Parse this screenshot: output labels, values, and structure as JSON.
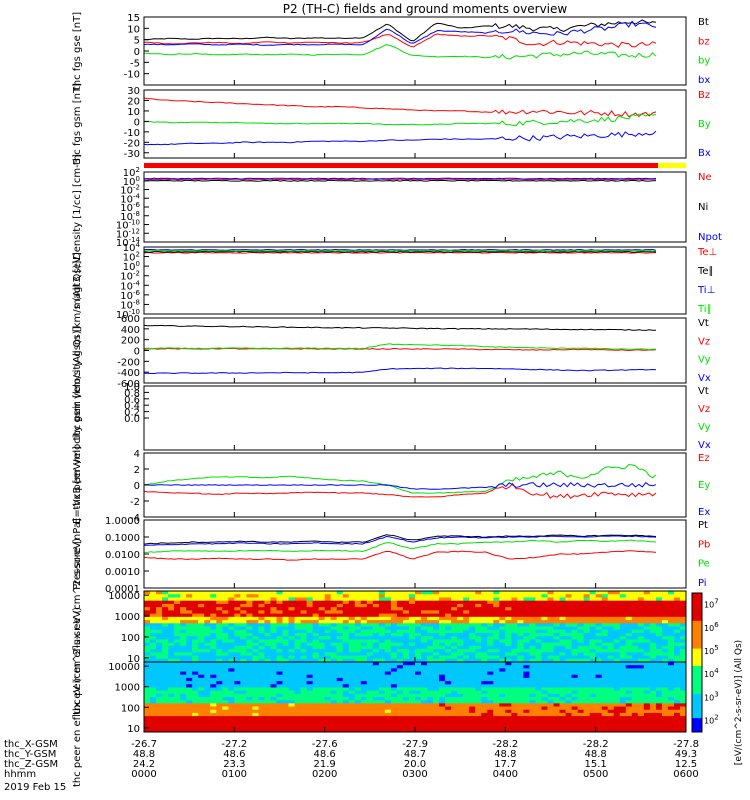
{
  "title": "P2 (TH-C) fields and ground moments overview",
  "colors": {
    "black": "#000000",
    "red": "#ff0000",
    "green": "#00e000",
    "blue": "#0000ff",
    "yellow": "#ffff00"
  },
  "chart_data": [
    {
      "id": "fgs_gse",
      "type": "line",
      "ylabel": "thc fgs gse [nT]",
      "ylim": [
        -15,
        15
      ],
      "yticks": [
        "15",
        "10",
        "5",
        "0",
        "-5",
        "-10"
      ],
      "yticks_values": [
        15,
        10,
        5,
        0,
        -5,
        -10
      ],
      "series": [
        {
          "name": "Bt",
          "color": "black",
          "values": [
            5,
            5.5,
            5.2,
            5.6,
            5.4,
            6,
            5.5,
            5.8,
            5.6,
            5.9,
            12,
            4,
            12.5,
            10,
            11,
            11,
            10,
            9.5,
            11,
            12,
            13,
            12
          ]
        },
        {
          "name": "bz",
          "color": "red",
          "values": [
            4,
            3.2,
            3.5,
            3.8,
            3.2,
            4,
            3.6,
            3.9,
            3.5,
            3.8,
            7.5,
            1.5,
            7.5,
            6.5,
            6.8,
            5.5,
            3,
            4,
            3.5,
            3,
            2.5,
            3
          ]
        },
        {
          "name": "by",
          "color": "green",
          "values": [
            -1,
            -1.5,
            -1.2,
            -1.8,
            -1.4,
            -1.6,
            -1.5,
            -1.7,
            -1.4,
            -1.6,
            3,
            -2,
            -2.5,
            -2.3,
            -2.8,
            -2.6,
            -2,
            -1.5,
            -1,
            -1.5,
            -2,
            -1.5
          ]
        },
        {
          "name": "bx",
          "color": "blue",
          "values": [
            3,
            2.8,
            3.1,
            2.7,
            3,
            2.6,
            2.9,
            2.8,
            3,
            2.7,
            10,
            3,
            9,
            8.5,
            8,
            9,
            8,
            7.5,
            9,
            10,
            12,
            11
          ]
        }
      ]
    },
    {
      "id": "fgs_gsm",
      "type": "line",
      "ylabel": "thc fgs gsm [nT]",
      "ylim": [
        -35,
        30
      ],
      "yticks": [
        "30",
        "20",
        "10",
        "0",
        "-10",
        "-20",
        "-30"
      ],
      "yticks_values": [
        30,
        20,
        10,
        0,
        -10,
        -20,
        -30
      ],
      "series": [
        {
          "name": "Bz",
          "color": "red",
          "values": [
            22,
            20,
            19,
            18,
            17,
            16,
            15,
            14,
            14,
            13,
            12,
            11,
            10,
            10,
            9,
            9,
            10,
            9,
            8,
            8,
            7,
            7
          ]
        },
        {
          "name": "By",
          "color": "green",
          "values": [
            0,
            -1,
            -1,
            -1,
            -1,
            -2,
            -2,
            -2,
            -2,
            -2,
            -3,
            -3,
            -3,
            -2,
            -2,
            -2,
            -1,
            0,
            1,
            2,
            4,
            5
          ]
        },
        {
          "name": "Bx",
          "color": "blue",
          "values": [
            -22,
            -22,
            -21,
            -21,
            -20,
            -20,
            -20,
            -19,
            -19,
            -19,
            -18,
            -18,
            -17,
            -17,
            -17,
            -16,
            -16,
            -15,
            -14,
            -13,
            -12,
            -10
          ]
        }
      ]
    },
    {
      "id": "density",
      "type": "line",
      "ylabel": "Density [1/cc] [cm-3]",
      "yscale": "log",
      "ylim": [
        -14,
        2
      ],
      "yticks": [
        "10^2",
        "10^0",
        "10^-2",
        "10^-4",
        "10^-6",
        "10^-8",
        "10^-10",
        "10^-12",
        "10^-14"
      ],
      "yticks_values": [
        2,
        0,
        -2,
        -4,
        -6,
        -8,
        -10,
        -12,
        -14
      ],
      "series": [
        {
          "name": "Ne",
          "color": "red",
          "values": [
            0.3,
            0.3,
            0.3,
            0.3,
            0.3,
            0.3,
            0.3,
            0.3,
            0.3,
            0.3,
            0.3,
            0.3,
            0.3,
            0.3,
            0.3,
            0.3,
            0.3,
            0.3,
            0.3,
            0.3,
            0.3,
            0.3
          ]
        },
        {
          "name": "Ni",
          "color": "black",
          "values": [
            0,
            0,
            0,
            0,
            0,
            0,
            0,
            0,
            0,
            0,
            0,
            0,
            0,
            0,
            0,
            0,
            0,
            0,
            0,
            0,
            0,
            0
          ]
        },
        {
          "name": "Npot",
          "color": "blue",
          "values": [
            0.5,
            0.5,
            0.5,
            0.5,
            0.5,
            0.5,
            0.5,
            0.5,
            0.5,
            0.5,
            0.5,
            0.5,
            0.5,
            0.5,
            0.5,
            0.5,
            0.5,
            0.5,
            0.5,
            0.5,
            0.5,
            0.5
          ]
        }
      ]
    },
    {
      "id": "temperature",
      "type": "line",
      "ylabel": "magt3 [eV]",
      "yscale": "log",
      "ylim": [
        -10,
        4
      ],
      "yticks": [
        "10^4",
        "10^2",
        "10^0",
        "10^-2",
        "10^-4",
        "10^-6",
        "10^-8",
        "10^-10"
      ],
      "yticks_values": [
        4,
        2,
        0,
        -2,
        -4,
        -6,
        -8,
        -10
      ],
      "series": [
        {
          "name": "Te⊥",
          "color": "red",
          "values": [
            2.8,
            2.8,
            2.8,
            2.8,
            2.8,
            2.8,
            2.8,
            2.8,
            2.8,
            2.8,
            2.8,
            2.8,
            2.8,
            2.8,
            2.8,
            2.8,
            2.8,
            2.8,
            2.8,
            2.8,
            2.8,
            2.8
          ]
        },
        {
          "name": "Te∥",
          "color": "black",
          "values": [
            3,
            3,
            3,
            3,
            3,
            3,
            3,
            3,
            3,
            3,
            3,
            3,
            3,
            3,
            3,
            3,
            3,
            3,
            3,
            3,
            3,
            3
          ]
        },
        {
          "name": "Ti⊥",
          "color": "blue",
          "values": [
            3.4,
            3.4,
            3.4,
            3.4,
            3.4,
            3.4,
            3.4,
            3.4,
            3.4,
            3.4,
            3.4,
            3.4,
            3.4,
            3.4,
            3.4,
            3.4,
            3.4,
            3.4,
            3.4,
            3.4,
            3.4,
            3.4
          ]
        },
        {
          "name": "Ti∥",
          "color": "green",
          "values": [
            3.2,
            3.2,
            3.2,
            3.2,
            3.2,
            3.2,
            3.2,
            3.2,
            3.2,
            3.2,
            3.2,
            3.2,
            3.2,
            3.2,
            3.2,
            3.2,
            3.2,
            3.2,
            3.2,
            3.2,
            3.2,
            3.2
          ]
        }
      ]
    },
    {
      "id": "peir_velocity",
      "type": "line",
      "ylabel": "thc peir velocity gsm [km/s (All Qs)]",
      "ylim": [
        -600,
        600
      ],
      "yticks": [
        "600",
        "400",
        "200",
        "0",
        "-200",
        "-400",
        "-600"
      ],
      "yticks_values": [
        600,
        400,
        200,
        0,
        -200,
        -400,
        -600
      ],
      "series": [
        {
          "name": "Vt",
          "color": "black",
          "values": [
            460,
            455,
            450,
            445,
            440,
            435,
            430,
            425,
            420,
            418,
            415,
            410,
            405,
            400,
            400,
            398,
            395,
            390,
            388,
            385,
            380,
            378
          ]
        },
        {
          "name": "Vz",
          "color": "red",
          "values": [
            30,
            32,
            28,
            35,
            30,
            28,
            32,
            30,
            28,
            30,
            30,
            28,
            30,
            25,
            20,
            15,
            10,
            15,
            20,
            10,
            5,
            10
          ]
        },
        {
          "name": "Vy",
          "color": "green",
          "values": [
            40,
            42,
            38,
            40,
            42,
            38,
            40,
            42,
            40,
            38,
            120,
            110,
            100,
            90,
            70,
            60,
            50,
            40,
            45,
            30,
            25,
            20
          ]
        },
        {
          "name": "Vx",
          "color": "blue",
          "values": [
            -420,
            -420,
            -418,
            -415,
            -415,
            -412,
            -410,
            -410,
            -408,
            -405,
            -340,
            -335,
            -330,
            -330,
            -330,
            -340,
            -350,
            -360,
            -370,
            -365,
            -360,
            -350
          ]
        }
      ]
    },
    {
      "id": "peer_velocity",
      "type": "line",
      "ylabel": "thc peer velocity gsm [km/s (All Qs)]",
      "ylim": [
        -1,
        1
      ],
      "yticks": [
        "1.0",
        "0.8",
        "0.6",
        "0.4",
        "0.2",
        "0.0"
      ],
      "yticks_values": [
        1,
        0.8,
        0.6,
        0.4,
        0.2,
        0
      ],
      "series": [
        {
          "name": "Vt",
          "color": "black",
          "values": []
        },
        {
          "name": "Vz",
          "color": "red",
          "values": []
        },
        {
          "name": "Vy",
          "color": "green",
          "values": []
        },
        {
          "name": "Vx",
          "color": "blue",
          "values": []
        }
      ]
    },
    {
      "id": "efield",
      "type": "line",
      "ylabel": "E=-VxB [mV/m]",
      "ylim": [
        -4,
        4
      ],
      "yticks": [
        "4",
        "2",
        "0",
        "-2",
        "-4"
      ],
      "yticks_values": [
        4,
        2,
        0,
        -2,
        -4
      ],
      "series": [
        {
          "name": "Ez",
          "color": "red",
          "values": [
            -0.8,
            -1,
            -1,
            -1.2,
            -1,
            -1.1,
            -1,
            -0.9,
            -1,
            -1,
            -1.2,
            -1.5,
            -1.5,
            -1.2,
            -1,
            0,
            -1,
            -1.5,
            -1.2,
            -1,
            -1.2,
            -1
          ]
        },
        {
          "name": "Ey",
          "color": "green",
          "values": [
            0,
            0.5,
            0.8,
            1,
            1,
            0.9,
            1.1,
            0.8,
            0.6,
            0.5,
            0,
            -1,
            -1,
            -0.9,
            -0.8,
            0.5,
            1,
            1.5,
            1,
            2,
            2.5,
            1
          ]
        },
        {
          "name": "Ex",
          "color": "blue",
          "values": [
            0,
            0,
            0,
            0,
            0,
            0,
            0,
            0,
            0,
            0,
            0,
            -0.5,
            -0.5,
            -0.4,
            -0.3,
            0,
            0,
            0,
            0,
            0,
            0,
            0
          ]
        }
      ]
    },
    {
      "id": "pressure",
      "type": "line",
      "ylabel": "Pressure [nPa]",
      "yscale": "log",
      "ylim": [
        -4,
        0
      ],
      "yticks": [
        "1.0000",
        "0.1000",
        "0.0100",
        "0.0010",
        "0.0001"
      ],
      "yticks_values": [
        0,
        -1,
        -2,
        -3,
        -4
      ],
      "series": [
        {
          "name": "Pt",
          "color": "black",
          "values": [
            -1.4,
            -1.35,
            -1.3,
            -1.3,
            -1.25,
            -1.3,
            -1.3,
            -1.25,
            -1.3,
            -1.3,
            -0.85,
            -1.2,
            -0.95,
            -0.95,
            -1,
            -0.95,
            -0.95,
            -0.9,
            -0.95,
            -0.9,
            -0.9,
            -0.95
          ]
        },
        {
          "name": "Pb",
          "color": "red",
          "values": [
            -2.2,
            -2.3,
            -2.3,
            -2.25,
            -2.3,
            -2.3,
            -2.35,
            -2.3,
            -2.3,
            -2.3,
            -1.8,
            -2.3,
            -1.9,
            -1.85,
            -1.9,
            -2.3,
            -2.2,
            -2,
            -2,
            -1.9,
            -1.8,
            -1.9
          ]
        },
        {
          "name": "Pe",
          "color": "green",
          "values": [
            -1.9,
            -1.85,
            -1.8,
            -1.85,
            -1.8,
            -1.8,
            -1.85,
            -1.8,
            -1.8,
            -1.85,
            -1.3,
            -1.7,
            -1.4,
            -1.4,
            -1.3,
            -1.3,
            -1.2,
            -1.3,
            -1.2,
            -1.25,
            -1.2,
            -1.3
          ]
        },
        {
          "name": "Pi",
          "color": "blue",
          "values": [
            -1.5,
            -1.45,
            -1.4,
            -1.4,
            -1.35,
            -1.4,
            -1.4,
            -1.35,
            -1.4,
            -1.4,
            -0.95,
            -1.3,
            -1.05,
            -1,
            -1.05,
            -1,
            -1,
            -0.95,
            -1,
            -0.95,
            -0.95,
            -1
          ]
        }
      ]
    },
    {
      "id": "peir_eflux",
      "type": "heatmap",
      "ylabel": "thc peir en eflux eV (cm^2-s-sr-eV)",
      "yscale": "log",
      "ylim": [
        0.8,
        4.2
      ],
      "yticks": [
        "10000",
        "1000",
        "100",
        "10"
      ],
      "yticks_values": [
        4,
        3,
        2,
        1
      ]
    },
    {
      "id": "peer_eflux",
      "type": "heatmap",
      "ylabel": "thc peer en eflux eV (cm^2-s-sr-eV)",
      "yscale": "log",
      "ylim": [
        0.8,
        4.2
      ],
      "yticks": [
        "10000",
        "1000",
        "100",
        "10"
      ],
      "yticks_values": [
        4,
        3,
        2,
        1
      ]
    }
  ],
  "colorbar": {
    "label": "[eV/(cm^2-s-sr-eV)] (All Qs)",
    "ticks": [
      "10^7",
      "10^6",
      "10^5",
      "10^4",
      "10^3",
      "10^2"
    ],
    "ticks_values": [
      7,
      6,
      5,
      4,
      3,
      2
    ],
    "range": [
      1.5,
      7.5
    ]
  },
  "xaxis": {
    "rows": [
      {
        "label": "thc_X-GSM",
        "values": [
          "-26.7",
          "-27.2",
          "-27.6",
          "-27.9",
          "-28.2",
          "-28.2",
          "-27.8"
        ]
      },
      {
        "label": "thc_Y-GSM",
        "values": [
          "48.8",
          "48.6",
          "48.6",
          "48.7",
          "48.8",
          "48.8",
          "49.3"
        ]
      },
      {
        "label": "thc_Z-GSM",
        "values": [
          "24.2",
          "23.3",
          "21.9",
          "20.0",
          "17.7",
          "15.1",
          "12.5"
        ]
      },
      {
        "label": "hhmm",
        "values": [
          "0000",
          "0100",
          "0200",
          "0300",
          "0400",
          "0500",
          "0600"
        ]
      }
    ],
    "date": "2019 Feb 15"
  }
}
